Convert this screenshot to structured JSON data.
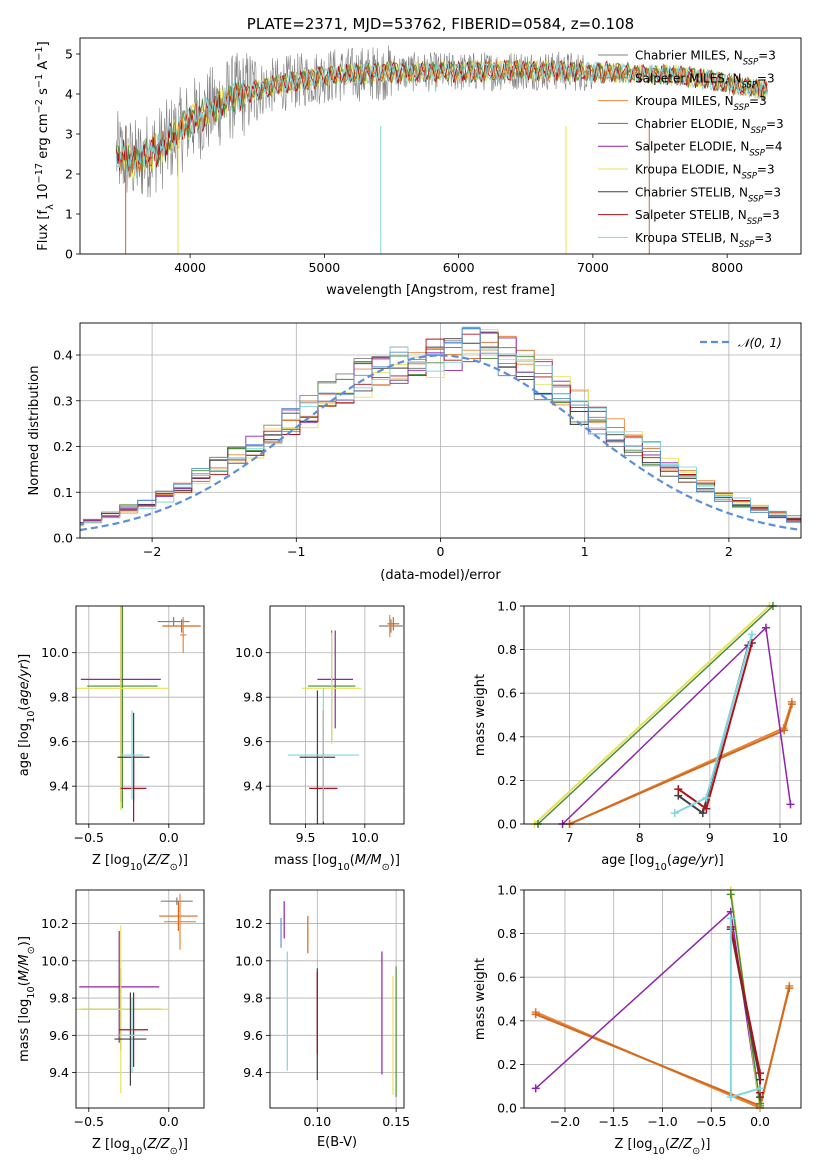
{
  "colors": {
    "chabrier_miles": "#808080",
    "salpeter_miles": "#d2691e",
    "kroupa_miles": "#e8873a",
    "chabrier_elodie": "#4a8c3a",
    "salpeter_elodie": "#8e24aa",
    "kroupa_elodie": "#e8e25a",
    "chabrier_stelib": "#404040",
    "salpeter_stelib": "#b0101a",
    "kroupa_stelib": "#7fd8e0",
    "normal": "#5b8fd8",
    "grid": "#b0b0b0"
  },
  "chart_data": [
    {
      "id": "spectrum",
      "type": "line",
      "title": "PLATE=2371, MJD=53762, FIBERID=0584, z=0.108",
      "xlabel": "wavelength [Angstrom, rest frame]",
      "ylabel": "Flux [f_λ 10^-17 erg cm^-2 s^-1 A^-1]",
      "xlim": [
        3180,
        8550
      ],
      "ylim": [
        0,
        5.4
      ],
      "xticks": [
        4000,
        5000,
        6000,
        7000,
        8000
      ],
      "yticks": [
        0,
        1,
        2,
        3,
        4,
        5
      ],
      "x_range": [
        3450,
        8300
      ],
      "continuum": [
        [
          3450,
          2.5
        ],
        [
          3600,
          2.3
        ],
        [
          3800,
          2.7
        ],
        [
          4000,
          3.3
        ],
        [
          4300,
          3.9
        ],
        [
          4600,
          4.2
        ],
        [
          5000,
          4.45
        ],
        [
          5500,
          4.55
        ],
        [
          6000,
          4.55
        ],
        [
          6500,
          4.6
        ],
        [
          7000,
          4.55
        ],
        [
          7500,
          4.5
        ],
        [
          7800,
          4.4
        ],
        [
          8000,
          4.25
        ],
        [
          8300,
          4.1
        ]
      ],
      "legend": [
        {
          "label": "Chabrier MILES, N",
          "sub": "SSP",
          "suffix": "=3",
          "color_key": "chabrier_miles"
        },
        {
          "label": "Salpeter MILES, N",
          "sub": "SSP",
          "suffix": "=3",
          "color_key": "salpeter_miles"
        },
        {
          "label": "Kroupa MILES, N",
          "sub": "SSP",
          "suffix": "=3",
          "color_key": "kroupa_miles"
        },
        {
          "label": "Chabrier ELODIE, N",
          "sub": "SSP",
          "suffix": "=3",
          "color_key": "chabrier_elodie"
        },
        {
          "label": "Salpeter ELODIE, N",
          "sub": "SSP",
          "suffix": "=4",
          "color_key": "salpeter_elodie"
        },
        {
          "label": "Kroupa ELODIE, N",
          "sub": "SSP",
          "suffix": "=3",
          "color_key": "kroupa_elodie"
        },
        {
          "label": "Chabrier STELIB, N",
          "sub": "SSP",
          "suffix": "=3",
          "color_key": "chabrier_stelib"
        },
        {
          "label": "Salpeter STELIB, N",
          "sub": "SSP",
          "suffix": "=3",
          "color_key": "salpeter_stelib"
        },
        {
          "label": "Kroupa STELIB, N",
          "sub": "SSP",
          "suffix": "=3",
          "color_key": "kroupa_stelib"
        }
      ]
    },
    {
      "id": "residuals",
      "type": "line",
      "xlabel": "(data-model)/error",
      "ylabel": "Normed distribution",
      "xlim": [
        -2.5,
        2.5
      ],
      "ylim": [
        0,
        0.47
      ],
      "xticks": [
        -2,
        -1,
        0,
        1,
        2
      ],
      "yticks": [
        0.0,
        0.1,
        0.2,
        0.3,
        0.4
      ],
      "legend": "𝒩(0, 1)",
      "bin_width": 0.125
    },
    {
      "id": "age_vs_Z",
      "type": "scatter",
      "xlabel": "Z [log10(Z/Z☉)]",
      "ylabel": "age  [log10(age/yr)]",
      "xlim": [
        -0.58,
        0.22
      ],
      "ylim": [
        9.23,
        10.21
      ],
      "xticks": [
        -0.5,
        0.0
      ],
      "yticks": [
        9.4,
        9.6,
        9.8,
        10.0
      ],
      "points": [
        {
          "x": 0.03,
          "y": 10.14,
          "xerr": 0.1,
          "yerr": 0.02,
          "c": "chabrier_miles"
        },
        {
          "x": 0.08,
          "y": 10.12,
          "xerr": 0.12,
          "yerr": 0.03,
          "c": "salpeter_miles"
        },
        {
          "x": 0.09,
          "y": 10.08,
          "xerr": 0.02,
          "yerr": 0.08,
          "c": "kroupa_miles"
        },
        {
          "x": -0.29,
          "y": 9.85,
          "xerr": 0.22,
          "yerr": 0.55,
          "c": "chabrier_elodie"
        },
        {
          "x": -0.3,
          "y": 9.88,
          "xerr": 0.25,
          "yerr": 0.55,
          "c": "salpeter_elodie"
        },
        {
          "x": -0.3,
          "y": 9.84,
          "xerr": 0.3,
          "yerr": 0.55,
          "c": "kroupa_elodie"
        },
        {
          "x": -0.22,
          "y": 9.53,
          "xerr": 0.1,
          "yerr": 0.2,
          "c": "chabrier_stelib"
        },
        {
          "x": -0.22,
          "y": 9.39,
          "xerr": 0.08,
          "yerr": 0.15,
          "c": "salpeter_stelib"
        },
        {
          "x": -0.23,
          "y": 9.54,
          "xerr": 0.07,
          "yerr": 0.2,
          "c": "kroupa_stelib"
        }
      ]
    },
    {
      "id": "age_vs_mass",
      "type": "scatter",
      "xlabel": "mass [log10(M/M☉)]",
      "ylabel": "",
      "xlim": [
        9.2,
        10.33
      ],
      "ylim": [
        9.23,
        10.21
      ],
      "xticks": [
        9.5,
        10.0
      ],
      "yticks": [
        9.4,
        9.6,
        9.8,
        10.0
      ],
      "points": [
        {
          "x": 10.22,
          "y": 10.12,
          "xerr": 0.1,
          "yerr": 0.03,
          "c": "chabrier_miles"
        },
        {
          "x": 10.24,
          "y": 10.13,
          "xerr": 0.05,
          "yerr": 0.03,
          "c": "salpeter_miles"
        },
        {
          "x": 10.21,
          "y": 10.12,
          "xerr": 0.02,
          "yerr": 0.05,
          "c": "kroupa_miles"
        },
        {
          "x": 9.72,
          "y": 9.85,
          "xerr": 0.2,
          "yerr": 0.25,
          "c": "chabrier_elodie"
        },
        {
          "x": 9.75,
          "y": 9.88,
          "xerr": 0.15,
          "yerr": 0.22,
          "c": "salpeter_elodie"
        },
        {
          "x": 9.72,
          "y": 9.84,
          "xerr": 0.25,
          "yerr": 0.25,
          "c": "kroupa_elodie"
        },
        {
          "x": 9.6,
          "y": 9.53,
          "xerr": 0.15,
          "yerr": 0.3,
          "c": "chabrier_stelib"
        },
        {
          "x": 9.65,
          "y": 9.39,
          "xerr": 0.12,
          "yerr": 0.35,
          "c": "salpeter_stelib"
        },
        {
          "x": 9.65,
          "y": 9.54,
          "xerr": 0.3,
          "yerr": 0.3,
          "c": "kroupa_stelib"
        }
      ]
    },
    {
      "id": "weight_vs_age",
      "type": "line",
      "xlabel": "age  [log10(age/yr)]",
      "ylabel": "mass weight",
      "xlim": [
        6.35,
        10.3
      ],
      "ylim": [
        0,
        1.0
      ],
      "xticks": [
        7,
        8,
        9,
        10
      ],
      "yticks": [
        0.0,
        0.2,
        0.4,
        0.6,
        0.8,
        1.0
      ],
      "series": [
        {
          "c": "kroupa_miles",
          "points": [
            [
              7.0,
              0.0
            ],
            [
              10.05,
              0.44
            ],
            [
              10.17,
              0.56
            ]
          ],
          "w": 2
        },
        {
          "c": "salpeter_miles",
          "points": [
            [
              7.0,
              0.0
            ],
            [
              10.06,
              0.43
            ],
            [
              10.17,
              0.55
            ]
          ],
          "w": 2
        },
        {
          "c": "kroupa_elodie",
          "points": [
            [
              6.5,
              0.0
            ],
            [
              9.85,
              1.0
            ]
          ],
          "w": 2
        },
        {
          "c": "chabrier_elodie",
          "points": [
            [
              6.55,
              0.0
            ],
            [
              9.9,
              1.0
            ]
          ],
          "w": 1.5
        },
        {
          "c": "salpeter_elodie",
          "points": [
            [
              6.9,
              0.0
            ],
            [
              9.8,
              0.9
            ],
            [
              10.15,
              0.09
            ]
          ],
          "w": 1.5
        },
        {
          "c": "chabrier_stelib",
          "points": [
            [
              8.55,
              0.13
            ],
            [
              8.9,
              0.05
            ],
            [
              9.55,
              0.82
            ]
          ],
          "w": 2
        },
        {
          "c": "salpeter_stelib",
          "points": [
            [
              8.55,
              0.16
            ],
            [
              8.95,
              0.07
            ],
            [
              9.6,
              0.83
            ]
          ],
          "w": 2
        },
        {
          "c": "kroupa_stelib",
          "points": [
            [
              8.5,
              0.05
            ],
            [
              8.95,
              0.12
            ],
            [
              9.6,
              0.87
            ]
          ],
          "w": 2
        }
      ]
    },
    {
      "id": "mass_vs_Z",
      "type": "scatter",
      "xlabel": "Z [log10(Z/Z☉)]",
      "ylabel": "mass [log10(M/M☉)]",
      "xlim": [
        -0.58,
        0.22
      ],
      "ylim": [
        9.21,
        10.38
      ],
      "xticks": [
        -0.5,
        0.0
      ],
      "yticks": [
        9.4,
        9.6,
        9.8,
        10.0,
        10.2
      ],
      "points": [
        {
          "x": 0.05,
          "y": 10.32,
          "xerr": 0.1,
          "yerr": 0.02,
          "c": "chabrier_miles"
        },
        {
          "x": 0.06,
          "y": 10.24,
          "xerr": 0.12,
          "yerr": 0.08,
          "c": "salpeter_miles"
        },
        {
          "x": 0.07,
          "y": 10.21,
          "xerr": 0.1,
          "yerr": 0.15,
          "c": "kroupa_miles"
        },
        {
          "x": -0.3,
          "y": 9.74,
          "xerr": 0.25,
          "yerr": 0.22,
          "c": "chabrier_elodie"
        },
        {
          "x": -0.31,
          "y": 9.86,
          "xerr": 0.25,
          "yerr": 0.3,
          "c": "salpeter_elodie"
        },
        {
          "x": -0.3,
          "y": 9.74,
          "xerr": 0.3,
          "yerr": 0.45,
          "c": "kroupa_elodie"
        },
        {
          "x": -0.24,
          "y": 9.58,
          "xerr": 0.1,
          "yerr": 0.25,
          "c": "chabrier_stelib"
        },
        {
          "x": -0.22,
          "y": 9.63,
          "xerr": 0.09,
          "yerr": 0.2,
          "c": "salpeter_stelib"
        },
        {
          "x": -0.23,
          "y": 9.6,
          "xerr": 0.08,
          "yerr": 0.2,
          "c": "kroupa_stelib"
        }
      ]
    },
    {
      "id": "mass_vs_ebv",
      "type": "scatter",
      "xlabel": "E(B-V)",
      "ylabel": "",
      "xlim": [
        0.07,
        0.155
      ],
      "ylim": [
        9.21,
        10.38
      ],
      "xticks": [
        0.1,
        0.15
      ],
      "yticks": [
        9.4,
        9.6,
        9.8,
        10.0,
        10.2
      ],
      "points": [
        {
          "x": 0.079,
          "y": 10.22,
          "xerr": 0,
          "yerr": 0.1,
          "c": "salpeter_elodie"
        },
        {
          "x": 0.077,
          "y": 10.15,
          "xerr": 0,
          "yerr": 0.08,
          "c": "normal"
        },
        {
          "x": 0.094,
          "y": 10.14,
          "xerr": 0,
          "yerr": 0.1,
          "c": "salpeter_miles"
        },
        {
          "x": 0.081,
          "y": 9.73,
          "xerr": 0,
          "yerr": 0.32,
          "c": "kroupa_stelib"
        },
        {
          "x": 0.1,
          "y": 9.66,
          "xerr": 0,
          "yerr": 0.3,
          "c": "chabrier_stelib"
        },
        {
          "x": 0.1,
          "y": 9.72,
          "xerr": 0,
          "yerr": 0.22,
          "c": "salpeter_stelib"
        },
        {
          "x": 0.141,
          "y": 9.72,
          "xerr": 0,
          "yerr": 0.33,
          "c": "salpeter_elodie"
        },
        {
          "x": 0.148,
          "y": 9.6,
          "xerr": 0,
          "yerr": 0.32,
          "c": "kroupa_elodie"
        },
        {
          "x": 0.15,
          "y": 9.62,
          "xerr": 0,
          "yerr": 0.35,
          "c": "chabrier_elodie"
        }
      ]
    },
    {
      "id": "weight_vs_Z",
      "type": "line",
      "xlabel": "Z [log10(Z/Z☉)]",
      "ylabel": "mass weight",
      "xlim": [
        -2.42,
        0.42
      ],
      "ylim": [
        0,
        1.0
      ],
      "xticks": [
        -2.0,
        -1.5,
        -1.0,
        -0.5,
        0.0
      ],
      "yticks": [
        0.0,
        0.2,
        0.4,
        0.6,
        0.8,
        1.0
      ],
      "series": [
        {
          "c": "kroupa_miles",
          "points": [
            [
              -2.3,
              0.44
            ],
            [
              0.0,
              0.0
            ],
            [
              0.3,
              0.56
            ]
          ],
          "w": 2
        },
        {
          "c": "salpeter_miles",
          "points": [
            [
              -2.3,
              0.43
            ],
            [
              0.0,
              0.01
            ],
            [
              0.3,
              0.55
            ]
          ],
          "w": 2
        },
        {
          "c": "salpeter_elodie",
          "points": [
            [
              -2.3,
              0.09
            ],
            [
              -0.3,
              0.9
            ],
            [
              0.0,
              0.0
            ]
          ],
          "w": 1.5
        },
        {
          "c": "kroupa_elodie",
          "points": [
            [
              -0.3,
              1.0
            ],
            [
              0.0,
              0.0
            ]
          ],
          "w": 2
        },
        {
          "c": "chabrier_elodie",
          "points": [
            [
              -0.3,
              0.98
            ],
            [
              0.0,
              0.02
            ]
          ],
          "w": 1.5
        },
        {
          "c": "chabrier_stelib",
          "points": [
            [
              -0.3,
              0.82
            ],
            [
              0.0,
              0.13
            ],
            [
              0.0,
              0.05
            ]
          ],
          "w": 2
        },
        {
          "c": "salpeter_stelib",
          "points": [
            [
              -0.3,
              0.83
            ],
            [
              0.0,
              0.16
            ],
            [
              0.0,
              0.07
            ]
          ],
          "w": 2
        },
        {
          "c": "kroupa_stelib",
          "points": [
            [
              -0.3,
              0.87
            ],
            [
              -0.3,
              0.05
            ],
            [
              0.0,
              0.09
            ]
          ],
          "w": 2
        }
      ]
    }
  ]
}
